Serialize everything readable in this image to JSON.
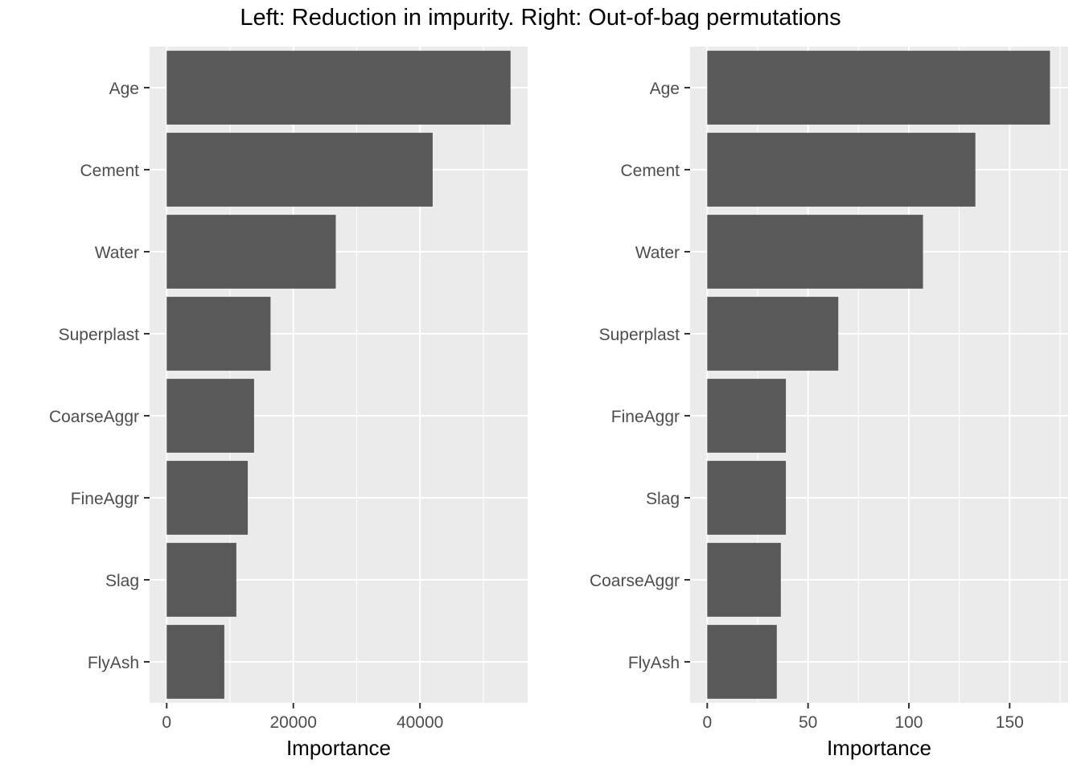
{
  "title": "Left: Reduction in impurity. Right: Out-of-bag permutations",
  "colors": {
    "panel_bg": "#EBEBEB",
    "grid": "#FFFFFF",
    "bar": "#595959",
    "tick": "#333333",
    "tick_text": "#4D4D4D"
  },
  "chart_data": [
    {
      "type": "bar",
      "orientation": "horizontal",
      "categories": [
        "Age",
        "Cement",
        "Water",
        "Superplast",
        "CoarseAggr",
        "FineAggr",
        "Slag",
        "FlyAsh"
      ],
      "values": [
        54300,
        42000,
        26700,
        16400,
        13800,
        12800,
        11000,
        9100
      ],
      "xlabel": "Importance",
      "ylabel": "",
      "xlim": [
        -2700,
        57000
      ],
      "xticks": [
        0,
        20000,
        40000
      ],
      "xtick_labels": [
        "0",
        "20000",
        "40000"
      ],
      "grid": true
    },
    {
      "type": "bar",
      "orientation": "horizontal",
      "categories": [
        "Age",
        "Cement",
        "Water",
        "Superplast",
        "FineAggr",
        "Slag",
        "CoarseAggr",
        "FlyAsh"
      ],
      "values": [
        170,
        133,
        107,
        65,
        39,
        39,
        36.5,
        34.5
      ],
      "xlabel": "Importance",
      "ylabel": "",
      "xlim": [
        -8.5,
        179
      ],
      "xticks": [
        0,
        50,
        100,
        150
      ],
      "xtick_labels": [
        "0",
        "50",
        "100",
        "150"
      ],
      "grid": true
    }
  ]
}
